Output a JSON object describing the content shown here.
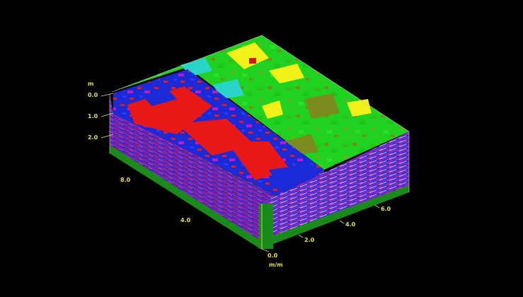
{
  "depth_axis": {
    "unit": "m",
    "ticks": [
      "0.0",
      "1.0",
      "2.0"
    ]
  },
  "left_axis": {
    "ticks": [
      "8.0",
      "4.0"
    ]
  },
  "right_axis": {
    "ticks": [
      "0.0",
      "2.0",
      "4.0",
      "6.0"
    ],
    "unit": "m/m"
  },
  "colors": {
    "background": "#000000",
    "top_low": "#1fd21f",
    "top_high": "#f2f21a",
    "top_mid": "#7a8c1e",
    "top_alt": "#27d6c8",
    "top_peak": "#d21a1a",
    "slice_high": "#e81818",
    "slice_low": "#1a2ad6",
    "stripe_magenta": "#c018c8",
    "stripe_pink": "#e04a7a",
    "stripe_blue": "#2a3aff",
    "base_green": "#1a8a1a",
    "axis_yellow": "#e8e04a"
  }
}
